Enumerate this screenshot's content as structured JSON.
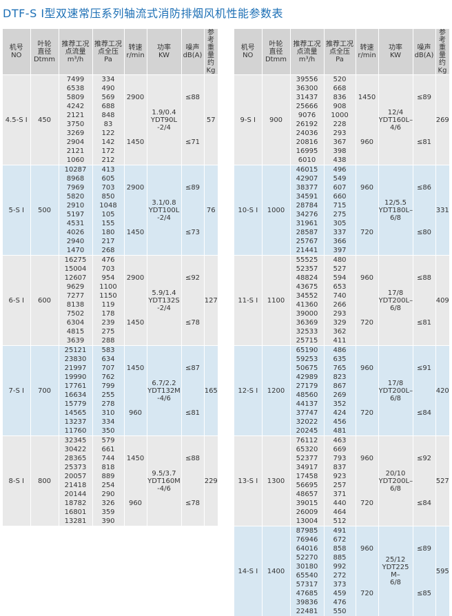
{
  "title": "DTF-S Ⅰ型双速常压系列轴流式消防排烟风机性能参数表",
  "headers": [
    "机号 NO",
    "叶轮直径 Dtmm",
    "推荐工况点流量 m³/h",
    "推荐工况点全压 Pa",
    "转速 r/min",
    "功率 KW",
    "噪声 dB(A)",
    "参考重量 约Kg"
  ],
  "headers_lines": [
    [
      "机号",
      "NO"
    ],
    [
      "叶轮",
      "直径",
      "Dtmm"
    ],
    [
      "推荐工况",
      "点流量",
      "m³/h"
    ],
    [
      "推荐工况",
      "点全压",
      "Pa"
    ],
    [
      "转速",
      "r/min"
    ],
    [
      "功率",
      "KW"
    ],
    [
      "噪声",
      "dB(A)"
    ],
    [
      "参考",
      "重量",
      "约Kg"
    ]
  ],
  "left_groups": [
    {
      "model": "4.5-S Ⅰ",
      "dia": "450",
      "power": "1.9/0.4 YDT90L -2/4",
      "power_lines": [
        "1.9/0.4",
        "YDT90L",
        "-2/4"
      ],
      "weight": "57",
      "flows": [
        "7499",
        "6538",
        "5809",
        "4242",
        "2121",
        "3750",
        "3269",
        "2904",
        "2121",
        "1060"
      ],
      "press": [
        "334",
        "490",
        "569",
        "688",
        "848",
        "83",
        "122",
        "142",
        "172",
        "212"
      ],
      "speeds": [
        "2900",
        "1450"
      ],
      "noises": [
        "≤88",
        "≤71"
      ]
    },
    {
      "model": "5-S Ⅰ",
      "dia": "500",
      "power": "3.1/0.8 YDT100L -2/4",
      "power_lines": [
        "3.1/0.8",
        "YDT100L",
        "-2/4"
      ],
      "weight": "76",
      "flows": [
        "10287",
        "8968",
        "7969",
        "5820",
        "2910",
        "5197",
        "4531",
        "4026",
        "2940",
        "1470"
      ],
      "press": [
        "413",
        "605",
        "703",
        "850",
        "1048",
        "105",
        "155",
        "180",
        "217",
        "268"
      ],
      "speeds": [
        "2900",
        "1450"
      ],
      "noises": [
        "≤89",
        "≤73"
      ]
    },
    {
      "model": "6-S Ⅰ",
      "dia": "600",
      "power": "5.9/1.4 YDT132S -2/4",
      "power_lines": [
        "5.9/1.4",
        "YDT132S",
        "-2/4"
      ],
      "weight": "127",
      "flows": [
        "16275",
        "15004",
        "12607",
        "9629",
        "7277",
        "8138",
        "7502",
        "6304",
        "4815",
        "3639"
      ],
      "press": [
        "476",
        "703",
        "954",
        "1100",
        "1150",
        "119",
        "178",
        "239",
        "275",
        "288"
      ],
      "speeds": [
        "2900",
        "1450"
      ],
      "noises": [
        "≤92",
        "≤78"
      ]
    },
    {
      "model": "7-S Ⅰ",
      "dia": "700",
      "power": "6.7/2.2 YDT132M -4/6",
      "power_lines": [
        "6.7/2.2",
        "YDT132M",
        "-4/6"
      ],
      "weight": "165",
      "flows": [
        "25121",
        "23830",
        "21997",
        "19990",
        "17761",
        "16634",
        "15779",
        "14565",
        "13237",
        "11760"
      ],
      "press": [
        "583",
        "634",
        "707",
        "762",
        "799",
        "255",
        "278",
        "310",
        "334",
        "350"
      ],
      "speeds": [
        "1450",
        "960"
      ],
      "noises": [
        "≤87",
        "≤81"
      ]
    },
    {
      "model": "8-S Ⅰ",
      "dia": "800",
      "power": "9.5/3.7 YDT160M -4/6",
      "power_lines": [
        "9.5/3.7",
        "YDT160M",
        "-4/6"
      ],
      "weight": "229",
      "flows": [
        "32345",
        "30422",
        "28365",
        "25373",
        "20057",
        "21418",
        "20144",
        "18782",
        "16801",
        "13281"
      ],
      "press": [
        "579",
        "661",
        "744",
        "818",
        "889",
        "254",
        "290",
        "326",
        "359",
        "390"
      ],
      "speeds": [
        "1450",
        "960"
      ],
      "noises": [
        "≤88",
        "≤78"
      ]
    }
  ],
  "right_groups": [
    {
      "model": "9-S Ⅰ",
      "dia": "900",
      "power": "12/4 YDT160L- 4/6",
      "power_lines": [
        "12/4",
        "YDT160L–",
        "4/6"
      ],
      "weight": "269",
      "flows": [
        "39556",
        "36300",
        "31437",
        "25666",
        "9076",
        "26192",
        "24036",
        "20816",
        "16995",
        "6010"
      ],
      "press": [
        "520",
        "668",
        "836",
        "908",
        "1000",
        "228",
        "293",
        "367",
        "398",
        "438"
      ],
      "speeds": [
        "1450",
        "960"
      ],
      "noises": [
        "≤89",
        "≤81"
      ]
    },
    {
      "model": "10-S Ⅰ",
      "dia": "1000",
      "power": "12/5.5 YDT180L- 6/8",
      "power_lines": [
        "12/5.5",
        "YDT180L–",
        "6/8"
      ],
      "weight": "331",
      "flows": [
        "46015",
        "42907",
        "38377",
        "34591",
        "28784",
        "34276",
        "31961",
        "28587",
        "25767",
        "21441"
      ],
      "press": [
        "496",
        "549",
        "607",
        "660",
        "715",
        "275",
        "305",
        "337",
        "366",
        "397"
      ],
      "speeds": [
        "960",
        "720"
      ],
      "noises": [
        "≤86",
        "≤80"
      ]
    },
    {
      "model": "11-S Ⅰ",
      "dia": "1100",
      "power": "17/8 YDT200L- 6/8",
      "power_lines": [
        "17/8",
        "YDT200L–",
        "6/8"
      ],
      "weight": "409",
      "flows": [
        "55525",
        "52357",
        "48824",
        "43675",
        "34552",
        "41360",
        "39000",
        "36369",
        "32533",
        "25715"
      ],
      "press": [
        "480",
        "527",
        "594",
        "653",
        "740",
        "266",
        "293",
        "329",
        "362",
        "411"
      ],
      "speeds": [
        "960",
        "720"
      ],
      "noises": [
        "≤88",
        "≤81"
      ]
    },
    {
      "model": "12-S Ⅰ",
      "dia": "1200",
      "power": "17/8 YDT200L- 6/8",
      "power_lines": [
        "17/8",
        "YDT200L–",
        "6/8"
      ],
      "weight": "420",
      "flows": [
        "65190",
        "59253",
        "50675",
        "42989",
        "27179",
        "48560",
        "44137",
        "37747",
        "32022",
        "20245"
      ],
      "press": [
        "486",
        "635",
        "765",
        "823",
        "867",
        "269",
        "352",
        "424",
        "456",
        "481"
      ],
      "speeds": [
        "960",
        "720"
      ],
      "noises": [
        "≤91",
        "≤84"
      ]
    },
    {
      "model": "13-S Ⅰ",
      "dia": "1300",
      "power": "20/10 YDT200L- 6/8",
      "power_lines": [
        "20/10",
        "YDT200L–",
        "6/8"
      ],
      "weight": "527",
      "flows": [
        "76112",
        "65320",
        "52377",
        "34917",
        "17458",
        "56695",
        "48657",
        "39015",
        "26009",
        "13004"
      ],
      "press": [
        "463",
        "669",
        "793",
        "837",
        "923",
        "257",
        "371",
        "440",
        "464",
        "512"
      ],
      "speeds": [
        "960",
        "720"
      ],
      "noises": [
        "≤92",
        "≤84"
      ]
    },
    {
      "model": "14-S Ⅰ",
      "dia": "1400",
      "power": "25/12 YDT225 M- 6/8",
      "power_lines": [
        "25/12",
        "YDT225 M–",
        "6/8"
      ],
      "weight": "595",
      "flows": [
        "87985",
        "76946",
        "64016",
        "52270",
        "30180",
        "65540",
        "57317",
        "47685",
        "39836",
        "22481"
      ],
      "press": [
        "491",
        "672",
        "858",
        "885",
        "992",
        "272",
        "373",
        "459",
        "476",
        "550"
      ],
      "speeds": [
        "960",
        "720"
      ],
      "noises": [
        "≤89",
        "≤85"
      ]
    }
  ]
}
